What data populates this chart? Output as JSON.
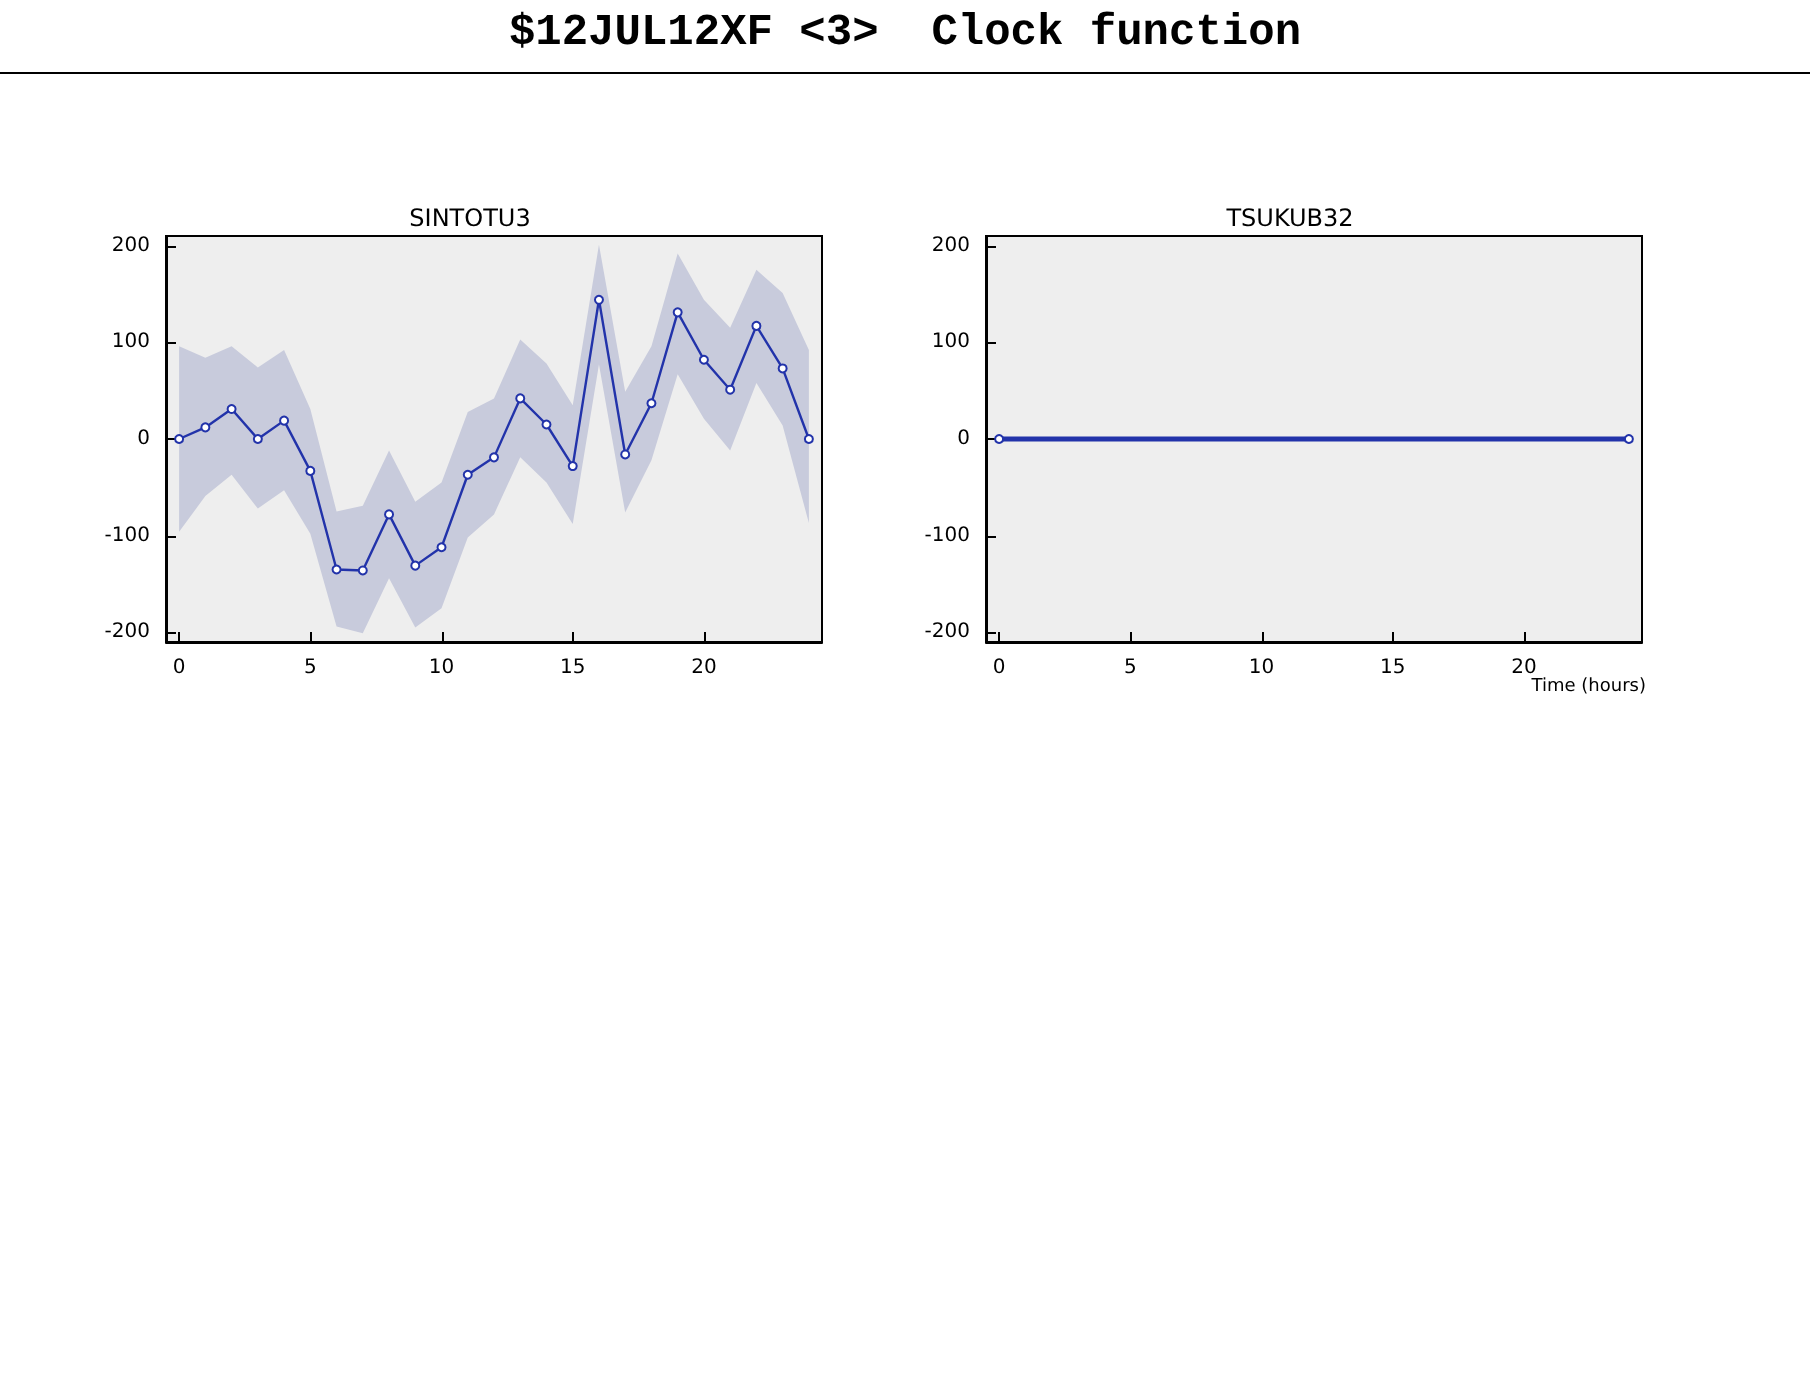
{
  "chart_data": [
    {
      "type": "line",
      "title": "SINTOTU3",
      "annotations": [
        "$12JUL12XF <3>  Clock function"
      ],
      "x": [
        0,
        1,
        2,
        3,
        4,
        5,
        6,
        7,
        8,
        9,
        10,
        11,
        12,
        13,
        14,
        15,
        16,
        17,
        18,
        19,
        20,
        21,
        22,
        23,
        24
      ],
      "series": [
        {
          "color": "#2233aa",
          "values": [
            0,
            12,
            31,
            0,
            19,
            -33,
            -135,
            -136,
            -78,
            -131,
            -112,
            -37,
            -19,
            42,
            15,
            -28,
            144,
            -16,
            37,
            131,
            82,
            51,
            117,
            73,
            0
          ],
          "lower": [
            -96,
            -59,
            -37,
            -72,
            -53,
            -98,
            -194,
            -201,
            -144,
            -195,
            -175,
            -102,
            -78,
            -19,
            -45,
            -88,
            77,
            -76,
            -22,
            67,
            21,
            -12,
            58,
            14,
            -87
          ],
          "upper": [
            96,
            84,
            96,
            74,
            92,
            31,
            -75,
            -69,
            -12,
            -65,
            -45,
            28,
            42,
            103,
            78,
            35,
            201,
            49,
            96,
            192,
            144,
            115,
            175,
            151,
            92
          ]
        }
      ],
      "xlim": [
        -0.5,
        24.5
      ],
      "xticks": [
        0,
        5,
        10,
        15,
        20
      ],
      "ylim": [
        -210,
        210
      ],
      "yticks": [
        -200,
        -100,
        0,
        100,
        200
      ],
      "grid": false,
      "marker": "circle",
      "line_style": "solid"
    },
    {
      "type": "line",
      "title": "TSUKUB32",
      "xlabel": "Time (hours)",
      "x": [
        0,
        24
      ],
      "series": [
        {
          "color": "#2233aa",
          "values": [
            0,
            0
          ]
        }
      ],
      "xlim": [
        -0.5,
        24.5
      ],
      "xticks": [
        0,
        5,
        10,
        15,
        20
      ],
      "ylim": [
        -210,
        210
      ],
      "yticks": [
        -200,
        -100,
        0,
        100,
        200
      ],
      "grid": false,
      "marker": "circle",
      "line_style": "solid"
    }
  ]
}
